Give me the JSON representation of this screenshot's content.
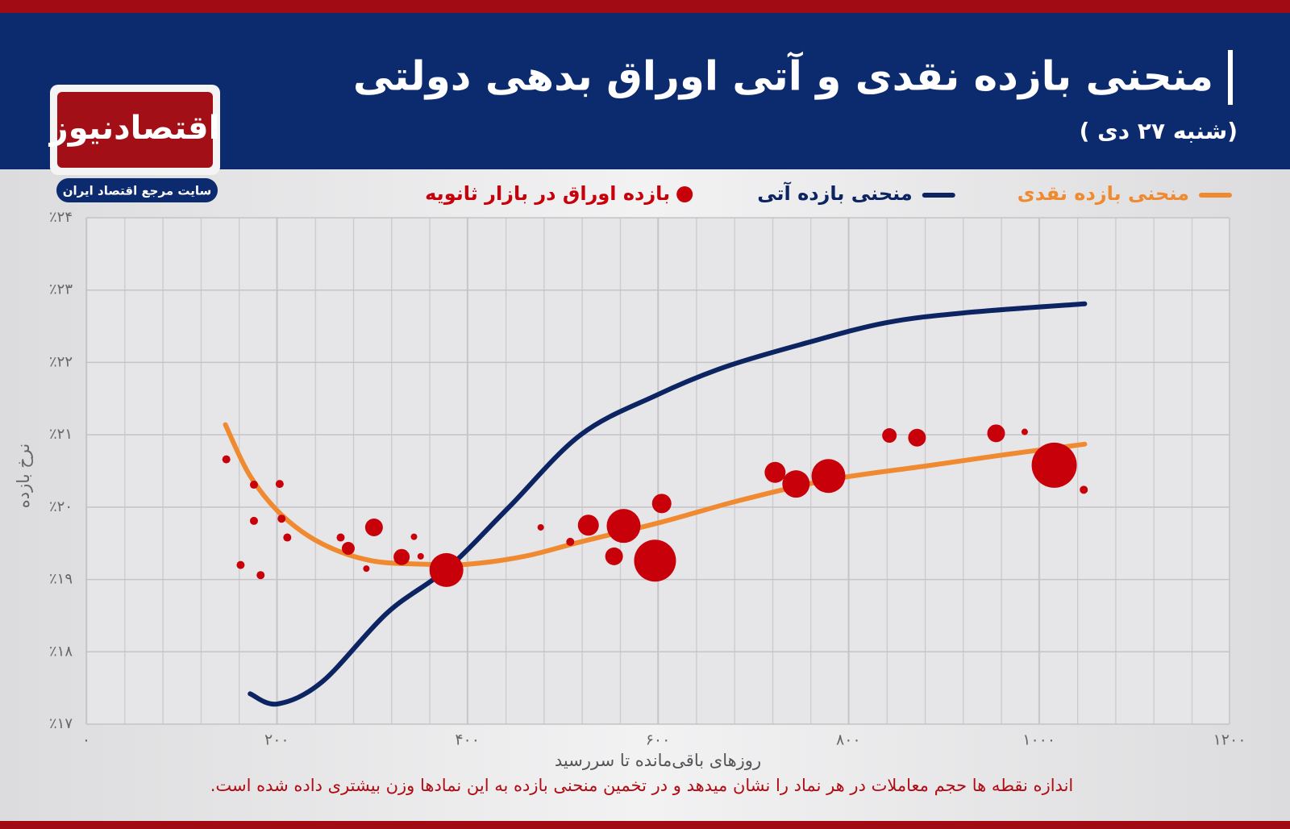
{
  "header": {
    "title": "منحنی بازده نقدی و آتی اوراق بدهی دولتی",
    "subtitle": "(شنبه ۲۷ دی )"
  },
  "logo": {
    "name": "اقتصادنیوز",
    "tagline": "سایت مرجع اقتصاد ایران"
  },
  "chart_data": {
    "type": "line",
    "x_label": "روزهای باقی‌مانده تا سررسید",
    "y_label": "نرخ بازده",
    "note": "اندازه نقطه ها حجم معاملات در هر نماد را نشان میدهد و در تخمین منحنی بازده به این نمادها وزن بیشتری داده شده است.",
    "xlim": [
      0,
      1200
    ],
    "xticks": [
      {
        "value": 0,
        "label": "۰"
      },
      {
        "value": 200,
        "label": "۲۰۰"
      },
      {
        "value": 400,
        "label": "۴۰۰"
      },
      {
        "value": 600,
        "label": "۶۰۰"
      },
      {
        "value": 800,
        "label": "۸۰۰"
      },
      {
        "value": 1000,
        "label": "۱۰۰۰"
      },
      {
        "value": 1200,
        "label": "۱۲۰۰"
      }
    ],
    "ylim": [
      17,
      24
    ],
    "yticks": [
      {
        "value": 17,
        "label": "٪۱۷"
      },
      {
        "value": 18,
        "label": "٪۱۸"
      },
      {
        "value": 19,
        "label": "٪۱۹"
      },
      {
        "value": 20,
        "label": "٪۲۰"
      },
      {
        "value": 21,
        "label": "٪۲۱"
      },
      {
        "value": 22,
        "label": "٪۲۲"
      },
      {
        "value": 23,
        "label": "٪۲۳"
      },
      {
        "value": 24,
        "label": "٪۲۴"
      }
    ],
    "grid": true,
    "series": [
      {
        "name": "منحنی بازده نقدی",
        "color": "#f08a30",
        "type": "line",
        "x": [
          146,
          172,
          206,
          248,
          299,
          358,
          400,
          460,
          519,
          603,
          688,
          781,
          882,
          967,
          1048
        ],
        "values": [
          21.14,
          20.43,
          19.88,
          19.49,
          19.26,
          19.21,
          19.21,
          19.32,
          19.52,
          19.79,
          20.1,
          20.38,
          20.57,
          20.73,
          20.87
        ]
      },
      {
        "name": "منحنی بازده آتی",
        "color": "#0c2461",
        "type": "line",
        "x": [
          172,
          201,
          248,
          316,
          379,
          443,
          519,
          599,
          671,
          756,
          840,
          925,
          1048
        ],
        "values": [
          17.42,
          17.28,
          17.59,
          18.54,
          19.15,
          19.99,
          21.0,
          21.55,
          21.94,
          22.27,
          22.55,
          22.69,
          22.81
        ]
      },
      {
        "name": "بازده اوراق در بازار ثانویه",
        "color": "#c8000a",
        "type": "scatter",
        "x": [
          147,
          176,
          203,
          176,
          205,
          211,
          162,
          183,
          267,
          275,
          302,
          294,
          331,
          344,
          351,
          378,
          477,
          508,
          527,
          564,
          554,
          597,
          604,
          723,
          745,
          779,
          843,
          872,
          955,
          985,
          1016,
          1047
        ],
        "values": [
          20.66,
          20.31,
          20.32,
          19.81,
          19.84,
          19.58,
          19.2,
          19.06,
          19.58,
          19.43,
          19.72,
          19.15,
          19.31,
          19.59,
          19.32,
          19.13,
          19.72,
          19.52,
          19.75,
          19.74,
          19.32,
          19.26,
          20.05,
          20.48,
          20.32,
          20.43,
          20.99,
          20.96,
          21.02,
          21.04,
          20.58,
          20.24
        ],
        "sizes": [
          5,
          5,
          5,
          5,
          5,
          5,
          5,
          5,
          5,
          8,
          11,
          4,
          10,
          4,
          4,
          21,
          4,
          5,
          13,
          21,
          11,
          26,
          12,
          13,
          17,
          21,
          9,
          11,
          11,
          4,
          28,
          5
        ]
      }
    ]
  }
}
